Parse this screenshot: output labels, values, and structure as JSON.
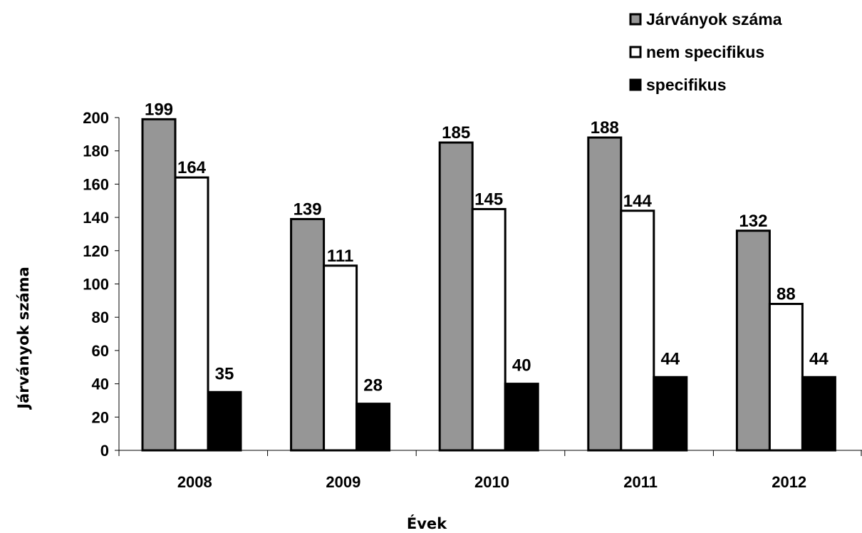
{
  "chart_data": {
    "type": "bar",
    "title": "",
    "xlabel": "Évek",
    "ylabel": "Járványok száma",
    "categories": [
      "2008",
      "2009",
      "2010",
      "2011",
      "2012"
    ],
    "series": [
      {
        "name": "Járványok száma",
        "values": [
          199,
          139,
          185,
          188,
          132
        ],
        "color": "#969696",
        "stroke": "#000000"
      },
      {
        "name": "nem specifikus",
        "values": [
          164,
          111,
          145,
          144,
          88
        ],
        "color": "#ffffff",
        "stroke": "#000000"
      },
      {
        "name": "specifikus",
        "values": [
          35,
          28,
          40,
          44,
          44
        ],
        "color": "#000000",
        "stroke": "#000000"
      }
    ],
    "ylim": [
      0,
      200
    ],
    "yticks": [
      0,
      20,
      40,
      60,
      80,
      100,
      120,
      140,
      160,
      180,
      200
    ],
    "grid": false,
    "legend_position": "top-right"
  }
}
